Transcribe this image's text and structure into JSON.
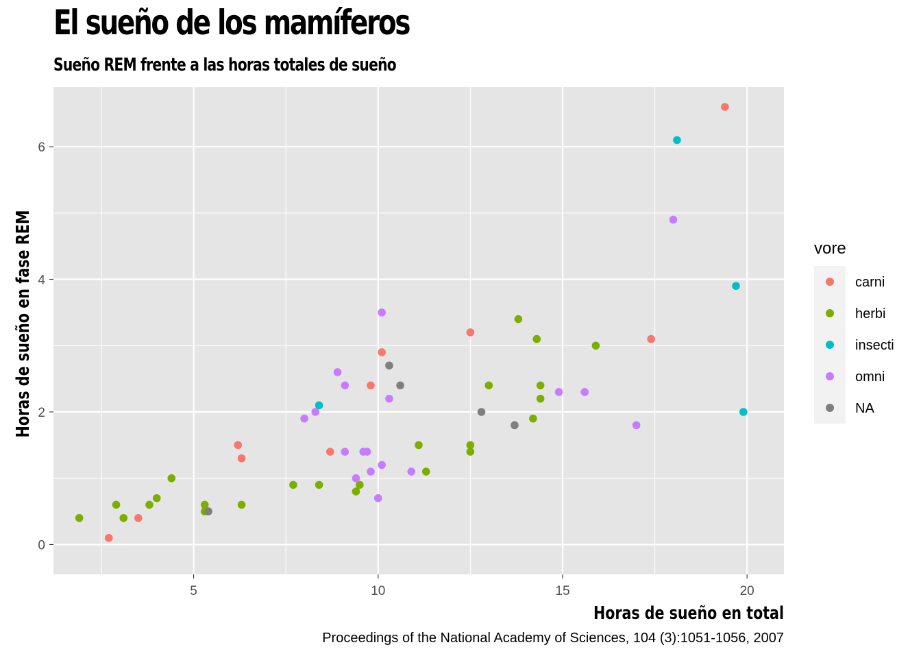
{
  "title": "El sueño de los mamíferos",
  "subtitle": "Sueño REM frente a las horas totales de sueño",
  "caption": "Proceedings of the National Academy of Sciences, 104 (3):1051-1056, 2007",
  "colors": {
    "panel_bg": "#e5e5e5",
    "grid": "#ffffff",
    "carni": "#f8766d",
    "herbi": "#7cae00",
    "insecti": "#00bfc4",
    "omni": "#c77cff",
    "NA": "#7f7f7f"
  },
  "chart_data": {
    "type": "scatter",
    "xlabel": "Horas de sueño en total",
    "ylabel": "Horas de sueño en fase REM",
    "xlim": [
      1.2,
      21.0
    ],
    "ylim": [
      -0.45,
      6.9
    ],
    "xticks": [
      5,
      10,
      15,
      20
    ],
    "yticks": [
      0,
      2,
      4,
      6
    ],
    "grid": true,
    "legend": {
      "title": "vore",
      "placement": "right",
      "entries": [
        "carni",
        "herbi",
        "insecti",
        "omni",
        "NA"
      ]
    },
    "series": [
      {
        "name": "carni",
        "color": "#f8766d",
        "points": [
          [
            2.7,
            0.1
          ],
          [
            3.5,
            0.4
          ],
          [
            6.2,
            1.5
          ],
          [
            6.3,
            1.3
          ],
          [
            8.7,
            1.4
          ],
          [
            9.8,
            2.4
          ],
          [
            10.1,
            2.9
          ],
          [
            12.5,
            3.2
          ],
          [
            17.4,
            3.1
          ],
          [
            19.4,
            6.6
          ]
        ]
      },
      {
        "name": "herbi",
        "color": "#7cae00",
        "points": [
          [
            1.9,
            0.4
          ],
          [
            2.9,
            0.6
          ],
          [
            3.1,
            0.4
          ],
          [
            3.8,
            0.6
          ],
          [
            4.0,
            0.7
          ],
          [
            4.4,
            1.0
          ],
          [
            5.3,
            0.6
          ],
          [
            5.3,
            0.5
          ],
          [
            6.3,
            0.6
          ],
          [
            7.7,
            0.9
          ],
          [
            8.4,
            0.9
          ],
          [
            9.4,
            0.8
          ],
          [
            9.5,
            0.9
          ],
          [
            11.1,
            1.5
          ],
          [
            11.3,
            1.1
          ],
          [
            12.5,
            1.5
          ],
          [
            12.5,
            1.4
          ],
          [
            13.0,
            2.4
          ],
          [
            13.8,
            3.4
          ],
          [
            14.2,
            1.9
          ],
          [
            14.3,
            3.1
          ],
          [
            14.4,
            2.4
          ],
          [
            14.4,
            2.2
          ],
          [
            15.9,
            3.0
          ]
        ]
      },
      {
        "name": "insecti",
        "color": "#00bfc4",
        "points": [
          [
            8.4,
            2.1
          ],
          [
            18.1,
            6.1
          ],
          [
            19.7,
            3.9
          ],
          [
            19.9,
            2.0
          ]
        ]
      },
      {
        "name": "omni",
        "color": "#c77cff",
        "points": [
          [
            8.0,
            1.9
          ],
          [
            8.3,
            2.0
          ],
          [
            8.9,
            2.6
          ],
          [
            9.1,
            2.4
          ],
          [
            9.1,
            1.4
          ],
          [
            9.4,
            1.0
          ],
          [
            9.6,
            1.4
          ],
          [
            9.7,
            1.4
          ],
          [
            9.8,
            1.1
          ],
          [
            10.0,
            0.7
          ],
          [
            10.1,
            1.2
          ],
          [
            10.1,
            3.5
          ],
          [
            10.3,
            2.2
          ],
          [
            10.9,
            1.1
          ],
          [
            14.9,
            2.3
          ],
          [
            15.6,
            2.3
          ],
          [
            17.0,
            1.8
          ],
          [
            18.0,
            4.9
          ]
        ]
      },
      {
        "name": "NA",
        "color": "#7f7f7f",
        "points": [
          [
            5.4,
            0.5
          ],
          [
            10.3,
            2.7
          ],
          [
            10.6,
            2.4
          ],
          [
            12.8,
            2.0
          ],
          [
            13.7,
            1.8
          ]
        ]
      }
    ]
  }
}
